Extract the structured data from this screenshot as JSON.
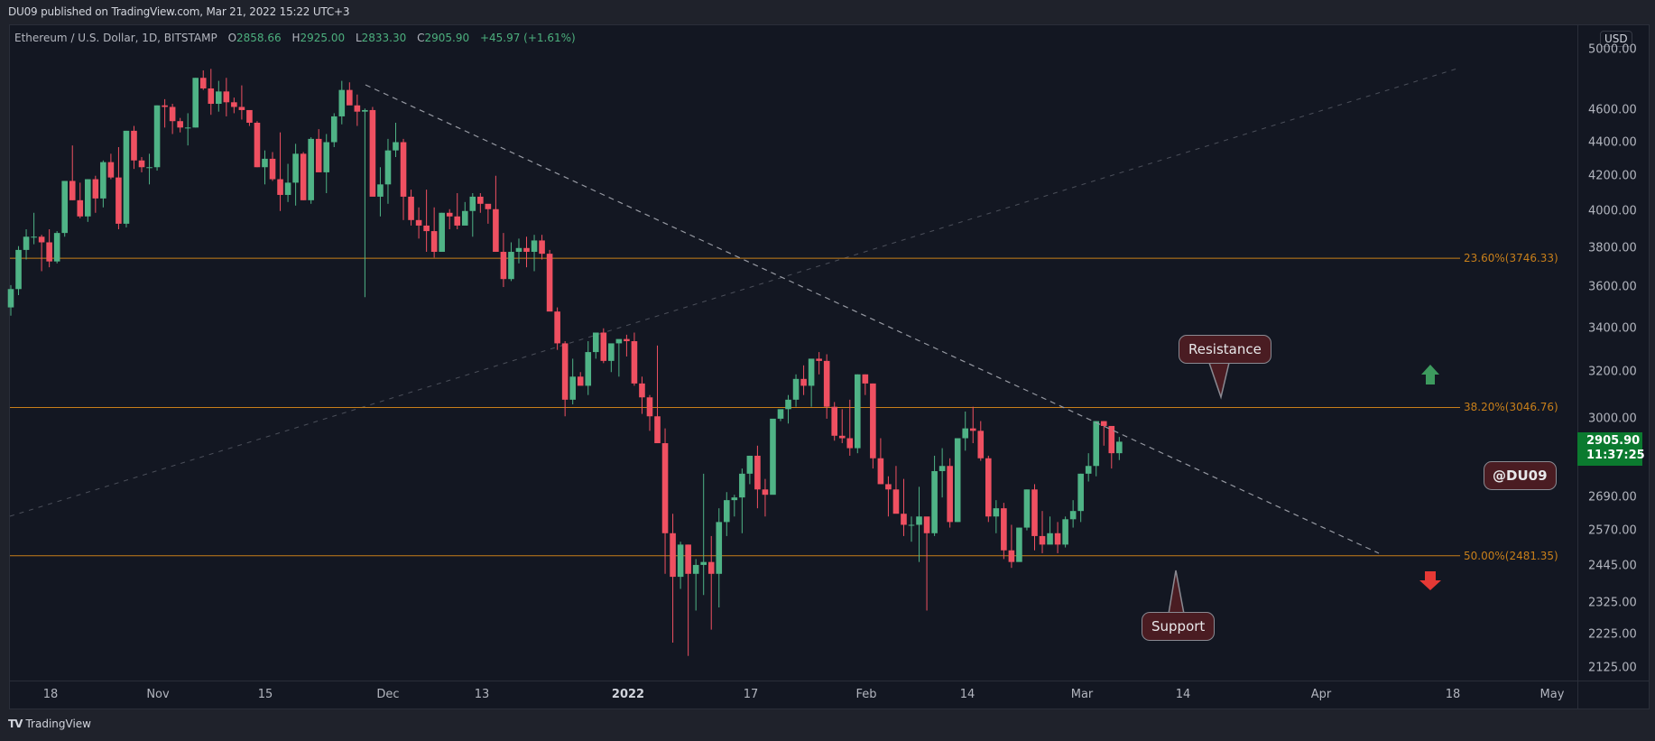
{
  "header": {
    "published": "DU09 published on TradingView.com, Mar 21, 2022 15:22 UTC+3"
  },
  "legend": {
    "symbol": "Ethereum / U.S. Dollar, 1D, BITSTAMP",
    "open_k": "O",
    "open": "2858.66",
    "high_k": "H",
    "high": "2925.00",
    "low_k": "L",
    "low": "2833.30",
    "close_k": "C",
    "close": "2905.90",
    "change": "+45.97 (+1.61%)"
  },
  "price_axis": {
    "currency": "USD",
    "labels": [
      "5000.00",
      "4600.00",
      "4400.00",
      "4200.00",
      "4000.00",
      "3800.00",
      "3600.00",
      "3400.00",
      "3200.00",
      "3000.00",
      "2690.00",
      "2570.00",
      "2445.00",
      "2325.00",
      "2225.00",
      "2125.00"
    ],
    "last_price": "2905.90",
    "countdown": "11:37:25"
  },
  "time_axis": {
    "labels": [
      "18",
      "Nov",
      "15",
      "Dec",
      "13",
      "2022",
      "17",
      "Feb",
      "14",
      "Mar",
      "14",
      "Apr",
      "18",
      "May"
    ]
  },
  "fib_levels": [
    {
      "label": "23.60%(3746.33)",
      "price": 3746.33
    },
    {
      "label": "38.20%(3046.76)",
      "price": 3046.76
    },
    {
      "label": "50.00%(2481.35)",
      "price": 2481.35
    }
  ],
  "annotations": {
    "resistance": "Resistance",
    "support": "Support",
    "author": "@DU09"
  },
  "footer": {
    "brand": "TradingView",
    "brand_mark": "TV"
  },
  "colors": {
    "up": "#4fb386",
    "down": "#ef5061",
    "fib": "#c87f1a",
    "bg": "#131722",
    "outer": "#1f222b",
    "callout": "#4a1c22",
    "up_arrow": "#3d9a5e",
    "down_arrow": "#e53935"
  },
  "chart_data": {
    "type": "candlestick",
    "title": "Ethereum / U.S. Dollar, 1D, BITSTAMP",
    "xlabel": "",
    "ylabel": "USD",
    "scale": "log",
    "ylim": [
      2080,
      5100
    ],
    "x_start": "2021-10-13",
    "x_end": "2022-03-21",
    "ohlc": [
      [
        3500,
        3610,
        3460,
        3590
      ],
      [
        3590,
        3810,
        3560,
        3790
      ],
      [
        3790,
        3900,
        3740,
        3860
      ],
      [
        3860,
        3990,
        3820,
        3860
      ],
      [
        3860,
        3870,
        3680,
        3830
      ],
      [
        3830,
        3900,
        3700,
        3730
      ],
      [
        3730,
        3890,
        3720,
        3880
      ],
      [
        3880,
        4170,
        3860,
        4170
      ],
      [
        4170,
        4380,
        4060,
        4060
      ],
      [
        4060,
        4160,
        3960,
        3970
      ],
      [
        3970,
        4180,
        3940,
        4180
      ],
      [
        4180,
        4200,
        3990,
        4070
      ],
      [
        4070,
        4290,
        4020,
        4280
      ],
      [
        4280,
        4330,
        4180,
        4190
      ],
      [
        4190,
        4370,
        3900,
        3930
      ],
      [
        3930,
        4470,
        3910,
        4470
      ],
      [
        4470,
        4500,
        4240,
        4290
      ],
      [
        4290,
        4310,
        4220,
        4250
      ],
      [
        4250,
        4330,
        4150,
        4250
      ],
      [
        4250,
        4630,
        4230,
        4630
      ],
      [
        4630,
        4670,
        4490,
        4620
      ],
      [
        4620,
        4640,
        4450,
        4530
      ],
      [
        4530,
        4550,
        4460,
        4490
      ],
      [
        4490,
        4580,
        4380,
        4490
      ],
      [
        4490,
        4810,
        4490,
        4810
      ],
      [
        4810,
        4860,
        4730,
        4740
      ],
      [
        4740,
        4870,
        4570,
        4640
      ],
      [
        4640,
        4790,
        4590,
        4720
      ],
      [
        4720,
        4810,
        4560,
        4650
      ],
      [
        4650,
        4680,
        4580,
        4620
      ],
      [
        4620,
        4760,
        4540,
        4600
      ],
      [
        4600,
        4590,
        4500,
        4520
      ],
      [
        4520,
        4530,
        4250,
        4250
      ],
      [
        4250,
        4350,
        4150,
        4300
      ],
      [
        4300,
        4340,
        4170,
        4180
      ],
      [
        4180,
        4460,
        4000,
        4090
      ],
      [
        4090,
        4270,
        4050,
        4160
      ],
      [
        4160,
        4390,
        4030,
        4330
      ],
      [
        4330,
        4340,
        4060,
        4060
      ],
      [
        4060,
        4430,
        4040,
        4420
      ],
      [
        4420,
        4480,
        4240,
        4220
      ],
      [
        4220,
        4450,
        4100,
        4400
      ],
      [
        4400,
        4580,
        4370,
        4560
      ],
      [
        4560,
        4790,
        4510,
        4730
      ],
      [
        4730,
        4780,
        4650,
        4630
      ],
      [
        4630,
        4700,
        4500,
        4590
      ],
      [
        4590,
        4610,
        3550,
        4600
      ],
      [
        4600,
        4620,
        4140,
        4080
      ],
      [
        4080,
        4250,
        3970,
        4150
      ],
      [
        4150,
        4420,
        4040,
        4350
      ],
      [
        4350,
        4520,
        4310,
        4400
      ],
      [
        4400,
        4420,
        3950,
        4080
      ],
      [
        4080,
        4120,
        3920,
        3950
      ],
      [
        3950,
        4020,
        3850,
        3920
      ],
      [
        3920,
        4120,
        3780,
        3890
      ],
      [
        3890,
        4020,
        3750,
        3780
      ],
      [
        3780,
        3990,
        3800,
        3990
      ],
      [
        3990,
        4010,
        3900,
        3970
      ],
      [
        3970,
        4100,
        3900,
        3920
      ],
      [
        3920,
        4050,
        3930,
        4000
      ],
      [
        4000,
        4100,
        3860,
        4080
      ],
      [
        4080,
        4100,
        3990,
        4040
      ],
      [
        4040,
        4030,
        3930,
        4010
      ],
      [
        4010,
        4200,
        3780,
        3780
      ],
      [
        3780,
        3880,
        3600,
        3640
      ],
      [
        3640,
        3830,
        3630,
        3780
      ],
      [
        3780,
        3850,
        3720,
        3800
      ],
      [
        3800,
        3860,
        3700,
        3780
      ],
      [
        3780,
        3870,
        3680,
        3840
      ],
      [
        3840,
        3870,
        3740,
        3770
      ],
      [
        3770,
        3790,
        3500,
        3480
      ],
      [
        3480,
        3500,
        3300,
        3330
      ],
      [
        3330,
        3340,
        3010,
        3080
      ],
      [
        3080,
        3260,
        3060,
        3180
      ],
      [
        3180,
        3200,
        3150,
        3140
      ],
      [
        3140,
        3340,
        3100,
        3290
      ],
      [
        3290,
        3370,
        3260,
        3380
      ],
      [
        3380,
        3400,
        3240,
        3250
      ],
      [
        3250,
        3320,
        3200,
        3330
      ],
      [
        3330,
        3340,
        3180,
        3350
      ],
      [
        3350,
        3370,
        3270,
        3340
      ],
      [
        3340,
        3380,
        3140,
        3150
      ],
      [
        3150,
        3180,
        3020,
        3090
      ],
      [
        3090,
        3100,
        2950,
        3010
      ],
      [
        3010,
        3320,
        2930,
        2900
      ],
      [
        2900,
        2960,
        2420,
        2560
      ],
      [
        2560,
        2630,
        2200,
        2410
      ],
      [
        2410,
        2530,
        2370,
        2520
      ],
      [
        2520,
        2520,
        2160,
        2420
      ],
      [
        2420,
        2470,
        2300,
        2450
      ],
      [
        2450,
        2780,
        2350,
        2460
      ],
      [
        2460,
        2550,
        2240,
        2420
      ],
      [
        2420,
        2650,
        2310,
        2600
      ],
      [
        2600,
        2710,
        2550,
        2680
      ],
      [
        2680,
        2700,
        2620,
        2690
      ],
      [
        2690,
        2800,
        2560,
        2780
      ],
      [
        2780,
        2850,
        2740,
        2850
      ],
      [
        2850,
        2890,
        2650,
        2720
      ],
      [
        2720,
        2760,
        2620,
        2700
      ],
      [
        2700,
        2810,
        2720,
        3000
      ],
      [
        3000,
        3030,
        2990,
        3040
      ],
      [
        3040,
        3100,
        2980,
        3080
      ],
      [
        3080,
        3190,
        3050,
        3170
      ],
      [
        3170,
        3230,
        3100,
        3140
      ],
      [
        3140,
        3250,
        3050,
        3260
      ],
      [
        3260,
        3290,
        3190,
        3250
      ],
      [
        3250,
        3280,
        3000,
        3050
      ],
      [
        3050,
        3070,
        2910,
        2930
      ],
      [
        2930,
        3040,
        2900,
        2920
      ],
      [
        2920,
        3080,
        2850,
        2880
      ],
      [
        2880,
        3190,
        2860,
        3190
      ],
      [
        3190,
        3190,
        3100,
        3150
      ],
      [
        3150,
        3150,
        2800,
        2840
      ],
      [
        2840,
        2920,
        2740,
        2740
      ],
      [
        2740,
        2770,
        2620,
        2720
      ],
      [
        2720,
        2810,
        2690,
        2630
      ],
      [
        2630,
        2760,
        2550,
        2590
      ],
      [
        2590,
        2620,
        2530,
        2590
      ],
      [
        2590,
        2730,
        2460,
        2620
      ],
      [
        2620,
        2580,
        2300,
        2560
      ],
      [
        2560,
        2850,
        2550,
        2790
      ],
      [
        2790,
        2880,
        2690,
        2810
      ],
      [
        2810,
        2840,
        2580,
        2600
      ],
      [
        2600,
        2870,
        2600,
        2920
      ],
      [
        2920,
        3030,
        2870,
        2960
      ],
      [
        2960,
        3050,
        2900,
        2950
      ],
      [
        2950,
        2990,
        2830,
        2840
      ],
      [
        2840,
        2850,
        2600,
        2620
      ],
      [
        2620,
        2680,
        2560,
        2650
      ],
      [
        2650,
        2670,
        2470,
        2500
      ],
      [
        2500,
        2590,
        2440,
        2460
      ],
      [
        2460,
        2580,
        2470,
        2580
      ],
      [
        2580,
        2720,
        2570,
        2720
      ],
      [
        2720,
        2740,
        2500,
        2550
      ],
      [
        2550,
        2640,
        2490,
        2520
      ],
      [
        2520,
        2620,
        2530,
        2560
      ],
      [
        2560,
        2600,
        2490,
        2520
      ],
      [
        2520,
        2620,
        2510,
        2610
      ],
      [
        2610,
        2680,
        2580,
        2640
      ],
      [
        2640,
        2780,
        2600,
        2780
      ],
      [
        2780,
        2860,
        2750,
        2810
      ],
      [
        2810,
        2990,
        2770,
        2990
      ],
      [
        2990,
        2990,
        2890,
        2970
      ],
      [
        2970,
        2960,
        2800,
        2860
      ],
      [
        2860,
        2925,
        2833,
        2906
      ]
    ],
    "trendlines": [
      {
        "name": "descending-resistance",
        "style": "dashed"
      },
      {
        "name": "ascending-channel",
        "style": "dashed-faint"
      }
    ],
    "tick_labels_y": [
      "5000.00",
      "4600.00",
      "4400.00",
      "4200.00",
      "4000.00",
      "3800.00",
      "3600.00",
      "3400.00",
      "3200.00",
      "3000.00",
      "2690.00",
      "2570.00",
      "2445.00",
      "2325.00",
      "2225.00",
      "2125.00"
    ],
    "tick_labels_x": [
      "18",
      "Nov",
      "15",
      "Dec",
      "13",
      "2022",
      "17",
      "Feb",
      "14",
      "Mar",
      "14",
      "Apr",
      "18",
      "May"
    ]
  }
}
